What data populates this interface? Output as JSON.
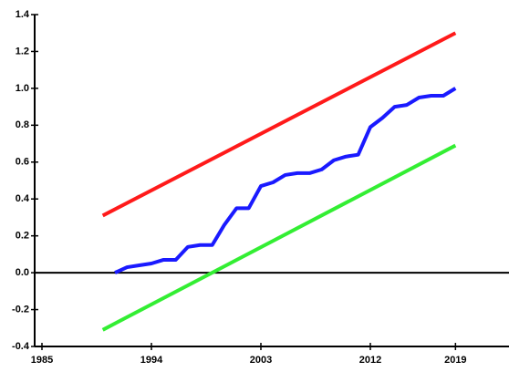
{
  "chart_data": {
    "type": "line",
    "xlim": [
      1984.4,
      2023.4
    ],
    "xticks": [
      1985,
      1994,
      2003,
      2012,
      2019
    ],
    "ylim": [
      -0.4,
      1.4
    ],
    "yticks": [
      1.4,
      1.2,
      {
        "value": 1.0,
        "label": "1.0"
      },
      0.8,
      0.6,
      0.4,
      0.2,
      {
        "value": 0.0,
        "label": "0.0"
      },
      -0.2,
      -0.4
    ],
    "reference_line": 0,
    "series": [
      {
        "color": "#ff1a1a",
        "x": [
          1990,
          2019
        ],
        "values": [
          0.31,
          1.3
        ]
      },
      {
        "color": "#33ee33",
        "x": [
          1990,
          2019
        ],
        "values": [
          -0.31,
          0.69
        ]
      },
      {
        "color": "#1a1aff",
        "x": [
          1991,
          1992,
          1993,
          1994,
          1995,
          1996,
          1997,
          1998,
          1999,
          2000,
          2001,
          2002,
          2003,
          2004,
          2005,
          2006,
          2007,
          2008,
          2009,
          2010,
          2011,
          2012,
          2013,
          2014,
          2015,
          2016,
          2017,
          2018,
          2019
        ],
        "values": [
          0.0,
          0.03,
          0.04,
          0.05,
          0.07,
          0.07,
          0.14,
          0.15,
          0.15,
          0.26,
          0.35,
          0.35,
          0.47,
          0.49,
          0.53,
          0.54,
          0.54,
          0.56,
          0.61,
          0.63,
          0.64,
          0.79,
          0.84,
          0.9,
          0.91,
          0.95,
          0.96,
          0.96,
          1.0
        ]
      }
    ]
  }
}
